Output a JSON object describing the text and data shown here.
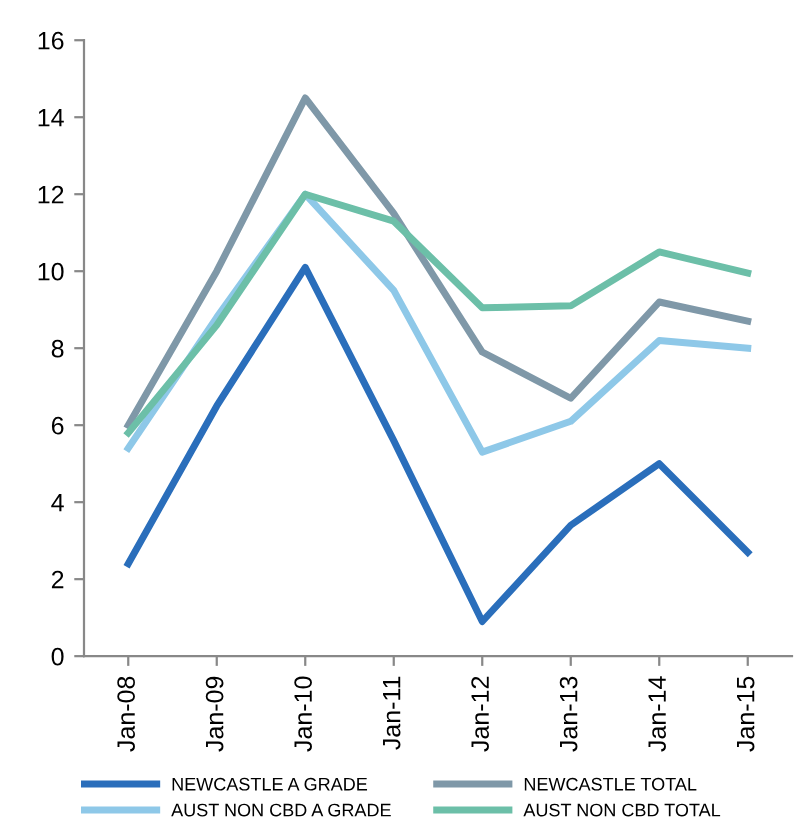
{
  "chart_data": {
    "type": "line",
    "categories": [
      "Jan-08",
      "Jan-09",
      "Jan-10",
      "Jan-11",
      "Jan-12",
      "Jan-13",
      "Jan-14",
      "Jan-15"
    ],
    "series": [
      {
        "name": "NEWCASTLE A GRADE",
        "color": "#2a6ebb",
        "values": [
          2.4,
          6.5,
          10.1,
          5.6,
          0.9,
          3.4,
          5.0,
          2.7
        ]
      },
      {
        "name": "NEWCASTLE TOTAL",
        "color": "#7f98a8",
        "values": [
          6.0,
          10.0,
          14.5,
          11.5,
          7.9,
          6.7,
          9.2,
          8.7
        ]
      },
      {
        "name": "AUST NON CBD A GRADE",
        "color": "#8ec8e8",
        "values": [
          5.4,
          8.8,
          12.0,
          9.5,
          5.3,
          6.1,
          8.2,
          8.0
        ]
      },
      {
        "name": "AUST NON CBD TOTAL",
        "color": "#6cbfa8",
        "values": [
          5.8,
          8.6,
          12.0,
          11.3,
          9.05,
          9.1,
          10.5,
          9.95
        ]
      }
    ],
    "ylim": [
      0,
      16
    ],
    "yticks": [
      0,
      2,
      4,
      6,
      8,
      10,
      12,
      14,
      16
    ],
    "grid": false,
    "legend": "bottom",
    "marker": "none",
    "line_style": "solid"
  }
}
